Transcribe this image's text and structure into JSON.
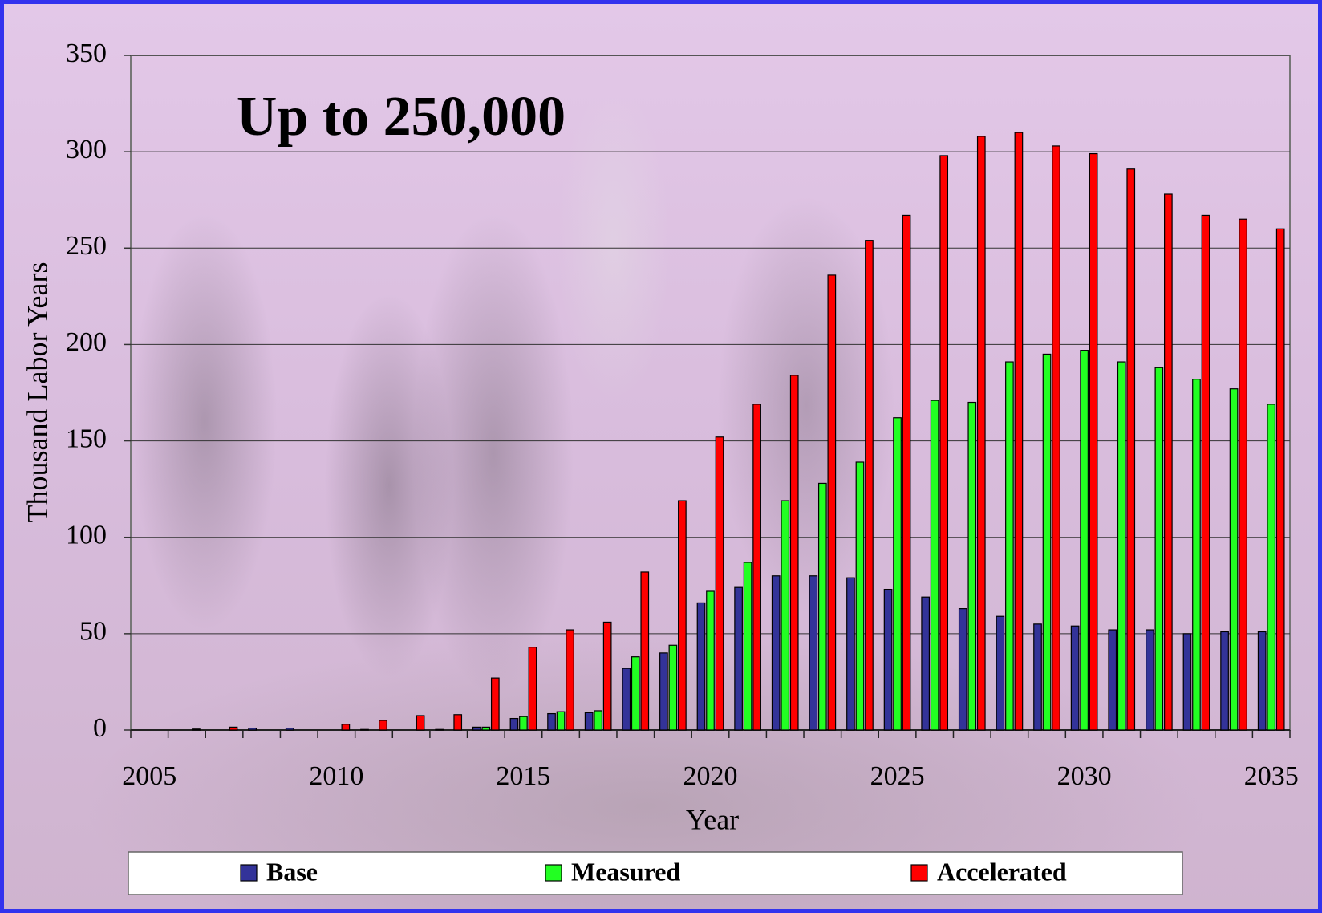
{
  "chart_data": {
    "type": "bar",
    "annotation": "Up to 250,000",
    "x_label": "Year",
    "y_label": "Thousand Labor Years",
    "categories": [
      "2005",
      null,
      null,
      null,
      null,
      "2010",
      null,
      null,
      null,
      null,
      "2015",
      null,
      null,
      null,
      null,
      "2020",
      null,
      null,
      null,
      null,
      "2025",
      null,
      null,
      null,
      null,
      "2030",
      null,
      null,
      null,
      null,
      "2035"
    ],
    "series": [
      {
        "name": "Base",
        "color": "#333399",
        "values": [
          0,
          0,
          0,
          1,
          1,
          0,
          0.3,
          0,
          0.3,
          1.5,
          6,
          8.5,
          9,
          32,
          40,
          66,
          74,
          80,
          80,
          79,
          73,
          69,
          63,
          59,
          55,
          54,
          52,
          52,
          50,
          51,
          51
        ]
      },
      {
        "name": "Measured",
        "color": "#22ff22",
        "values": [
          0,
          0,
          0,
          0,
          0,
          0,
          0,
          0,
          0,
          1.5,
          7,
          9.5,
          10,
          38,
          44,
          72,
          87,
          119,
          128,
          139,
          162,
          171,
          170,
          191,
          195,
          197,
          191,
          188,
          182,
          177,
          169
        ]
      },
      {
        "name": "Accelerated",
        "color": "#ff0000",
        "values": [
          0,
          0.5,
          1.5,
          0,
          0,
          3,
          5,
          7.5,
          8,
          27,
          43,
          52,
          56,
          82,
          119,
          152,
          169,
          184,
          236,
          254,
          267,
          298,
          308,
          310,
          303,
          299,
          291,
          278,
          267,
          265,
          260
        ]
      }
    ],
    "ylim": [
      0,
      350
    ],
    "yticks": [
      0,
      50,
      100,
      150,
      200,
      250,
      300,
      350
    ],
    "grid": true
  }
}
